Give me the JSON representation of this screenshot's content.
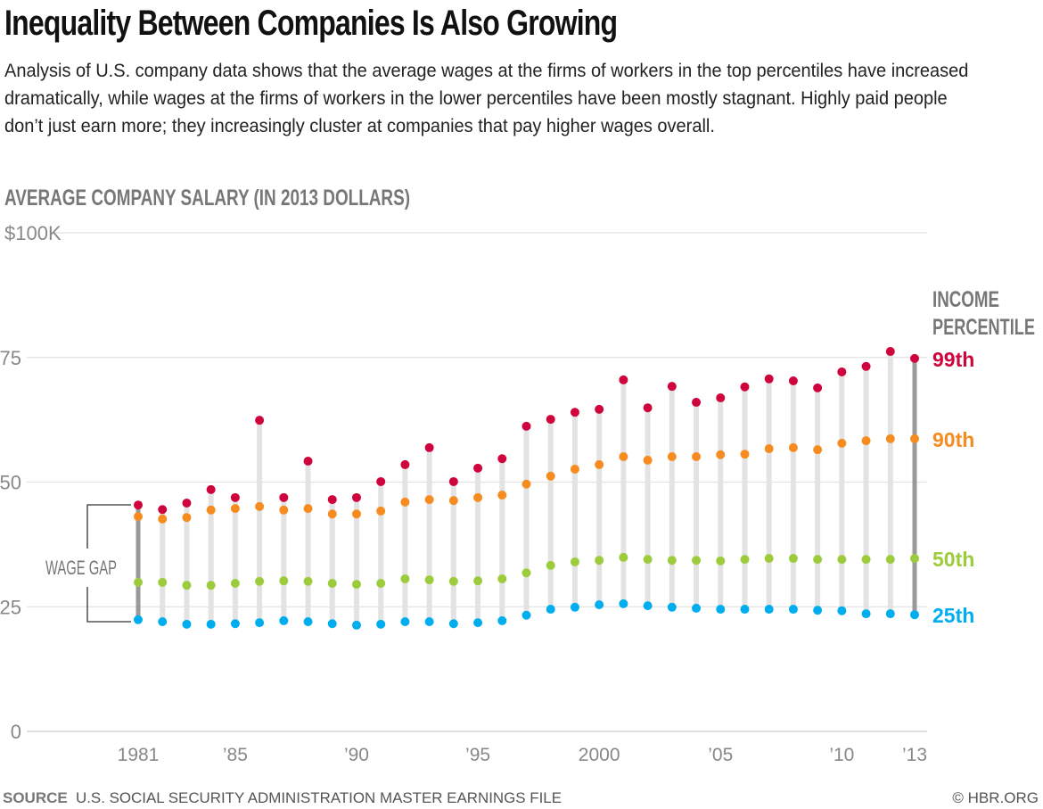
{
  "title": "Inequality Between Companies Is Also Growing",
  "subtitle": "Analysis of U.S. company data shows that the average wages at the firms of workers in the top percentiles have increased dramatically, while wages at the firms of workers in the lower percentiles have been mostly stagnant. Highly paid people don’t just earn more; they increasingly cluster at companies that pay higher wages overall.",
  "footer": {
    "source_label": "SOURCE",
    "source_text": "U.S. SOCIAL SECURITY ADMINISTRATION MASTER EARNINGS FILE",
    "credit": "© HBR.ORG"
  },
  "chart_data": {
    "type": "dot-range",
    "ylabel": "AVERAGE COMPANY SALARY (IN 2013 DOLLARS)",
    "ylim": [
      0,
      100
    ],
    "yticks": [
      {
        "v": 0,
        "label": "0"
      },
      {
        "v": 25,
        "label": "25"
      },
      {
        "v": 50,
        "label": "50"
      },
      {
        "v": 75,
        "label": "75"
      },
      {
        "v": 100,
        "label": "$100K"
      }
    ],
    "xticks": [
      {
        "v": 1981,
        "label": "1981"
      },
      {
        "v": 1985,
        "label": "’85"
      },
      {
        "v": 1990,
        "label": "’90"
      },
      {
        "v": 1995,
        "label": "’95"
      },
      {
        "v": 2000,
        "label": "2000"
      },
      {
        "v": 2005,
        "label": "’05"
      },
      {
        "v": 2010,
        "label": "’10"
      },
      {
        "v": 2013,
        "label": "’13"
      }
    ],
    "grid": true,
    "legend_title": [
      "INCOME",
      "PERCENTILE"
    ],
    "annotation": "WAGE GAP",
    "years": [
      1981,
      1982,
      1983,
      1984,
      1985,
      1986,
      1987,
      1988,
      1989,
      1990,
      1991,
      1992,
      1993,
      1994,
      1995,
      1996,
      1997,
      1998,
      1999,
      2000,
      2001,
      2002,
      2003,
      2004,
      2005,
      2006,
      2007,
      2008,
      2009,
      2010,
      2011,
      2012,
      2013
    ],
    "series": [
      {
        "name": "99th",
        "color": "#d0043c",
        "values": [
          45.4,
          44.5,
          45.8,
          48.5,
          46.9,
          62.4,
          46.9,
          54.2,
          46.5,
          46.9,
          50.1,
          53.5,
          56.9,
          50.1,
          52.8,
          54.7,
          61.2,
          62.6,
          64.0,
          64.6,
          70.5,
          64.9,
          69.2,
          66.0,
          66.9,
          69.1,
          70.7,
          70.3,
          68.9,
          72.1,
          73.2,
          76.2,
          74.8
        ]
      },
      {
        "name": "90th",
        "color": "#f68b1f",
        "values": [
          43.1,
          42.6,
          42.9,
          44.4,
          44.7,
          45.1,
          44.4,
          44.7,
          43.6,
          43.6,
          44.2,
          46.0,
          46.5,
          46.3,
          46.9,
          47.4,
          49.6,
          51.2,
          52.6,
          53.5,
          55.1,
          54.4,
          55.1,
          55.1,
          55.5,
          55.6,
          56.7,
          56.9,
          56.5,
          57.8,
          58.3,
          58.7,
          58.7
        ]
      },
      {
        "name": "50th",
        "color": "#9ccb3b",
        "values": [
          29.9,
          29.9,
          29.3,
          29.3,
          29.7,
          30.1,
          30.2,
          30.1,
          29.7,
          29.5,
          29.7,
          30.6,
          30.4,
          30.1,
          30.2,
          30.6,
          31.8,
          33.3,
          34.0,
          34.3,
          34.9,
          34.5,
          34.3,
          34.3,
          34.2,
          34.5,
          34.7,
          34.7,
          34.5,
          34.5,
          34.5,
          34.5,
          34.7
        ]
      },
      {
        "name": "25th",
        "color": "#00aeef",
        "values": [
          22.4,
          22.0,
          21.5,
          21.5,
          21.6,
          21.8,
          22.2,
          22.0,
          21.6,
          21.3,
          21.5,
          22.0,
          22.0,
          21.6,
          21.8,
          22.2,
          23.3,
          24.5,
          24.9,
          25.4,
          25.6,
          25.2,
          24.9,
          24.7,
          24.5,
          24.5,
          24.5,
          24.5,
          24.3,
          24.2,
          23.6,
          23.6,
          23.4
        ]
      }
    ]
  }
}
